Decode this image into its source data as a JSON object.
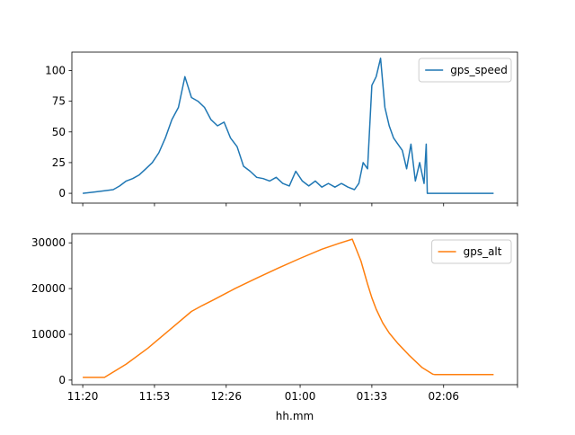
{
  "chart_data": [
    {
      "type": "line",
      "xlabel": "",
      "ylabel": "",
      "x_ticks_minutes": [
        0,
        33,
        66,
        100,
        133,
        166,
        200
      ],
      "ylim": [
        -8,
        115
      ],
      "yticks": [
        0,
        25,
        50,
        75,
        100
      ],
      "legend_position": "top-right",
      "series": [
        {
          "name": "gps_speed",
          "color": "#1f77b4",
          "x_minutes": [
            0,
            5,
            10,
            14,
            17,
            20,
            23,
            26,
            29,
            32,
            35,
            38,
            41,
            44,
            47,
            50,
            53,
            56,
            59,
            62,
            65,
            68,
            71,
            74,
            77,
            80,
            83,
            86,
            89,
            92,
            95,
            98,
            101,
            104,
            107,
            110,
            113,
            116,
            119,
            122,
            125,
            127,
            129,
            131,
            133,
            135,
            137,
            139,
            141,
            143,
            145,
            147,
            149,
            151,
            153,
            155,
            157,
            158,
            158.5,
            165,
            170,
            175,
            189
          ],
          "y": [
            0,
            1,
            2,
            3,
            6,
            10,
            12,
            15,
            20,
            25,
            33,
            45,
            60,
            70,
            95,
            78,
            75,
            70,
            60,
            55,
            58,
            45,
            38,
            22,
            18,
            13,
            12,
            10,
            13,
            8,
            6,
            18,
            10,
            6,
            10,
            5,
            8,
            5,
            8,
            5,
            3,
            8,
            25,
            20,
            88,
            95,
            110,
            70,
            55,
            45,
            40,
            35,
            20,
            40,
            10,
            25,
            8,
            40,
            0,
            0,
            0,
            0,
            0
          ]
        }
      ]
    },
    {
      "type": "line",
      "xlabel": "hh.mm",
      "ylabel": "",
      "ylim": [
        -1000,
        32000
      ],
      "yticks": [
        0,
        10000,
        20000,
        30000
      ],
      "legend_position": "top-right",
      "x_tick_labels": [
        "11:20",
        "11:53",
        "12:26",
        "01:00",
        "01:33",
        "02:06"
      ],
      "x_tick_minutes": [
        0,
        33,
        66,
        100,
        133,
        166
      ],
      "x_ticks_minutes": [
        0,
        33,
        66,
        100,
        133,
        166,
        200
      ],
      "series": [
        {
          "name": "gps_alt",
          "color": "#ff7f0e",
          "x_minutes": [
            0,
            10,
            20,
            30,
            40,
            50,
            55,
            60,
            70,
            80,
            90,
            100,
            110,
            118,
            124,
            128,
            131,
            133,
            135,
            138,
            141,
            145,
            150,
            156,
            161,
            162,
            170,
            180,
            189
          ],
          "y": [
            600,
            600,
            3500,
            7000,
            11000,
            15000,
            16300,
            17500,
            20000,
            22300,
            24500,
            26600,
            28600,
            29900,
            30800,
            26000,
            21000,
            18000,
            15500,
            12500,
            10300,
            8000,
            5500,
            2800,
            1300,
            1200,
            1200,
            1200,
            1200
          ]
        }
      ]
    }
  ]
}
